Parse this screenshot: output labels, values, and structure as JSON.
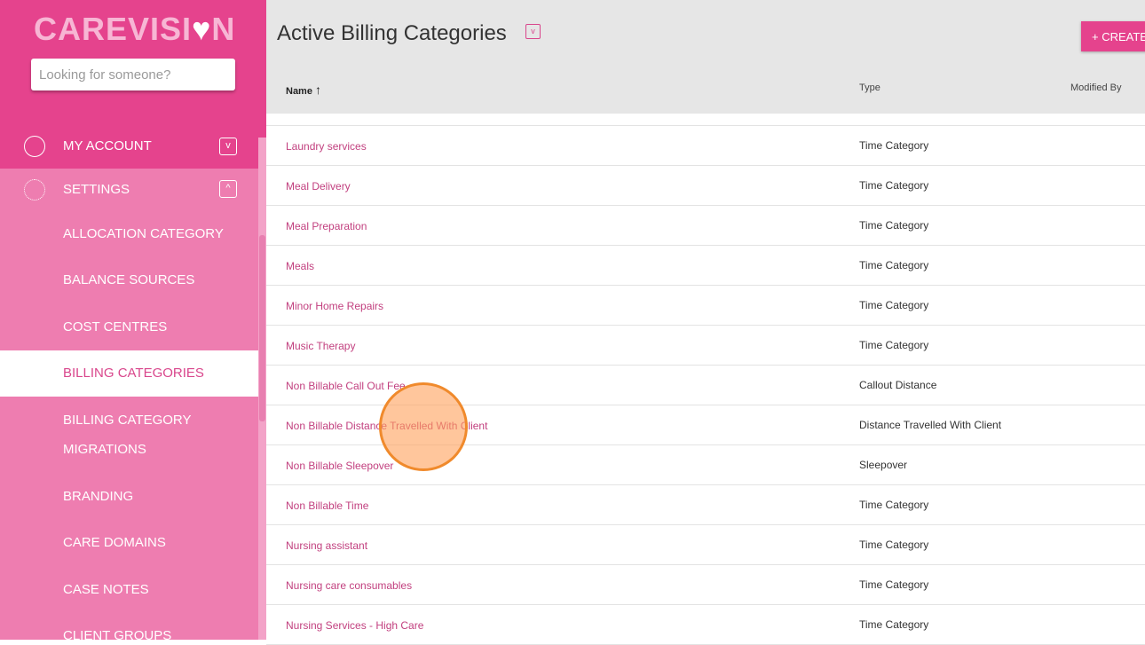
{
  "sidebar": {
    "logo": "CAREVISI",
    "logo_heart": "♥",
    "logo_end": "N",
    "search_placeholder": "Looking for someone?",
    "items": [
      {
        "label": "MY ACCOUNT"
      },
      {
        "label": "SETTINGS"
      },
      {
        "label": "ALLOCATION CATEGORY"
      },
      {
        "label": "BALANCE SOURCES"
      },
      {
        "label": "COST CENTRES"
      },
      {
        "label": "BILLING CATEGORIES"
      },
      {
        "label": "BILLING CATEGORY"
      },
      {
        "label": "MIGRATIONS"
      },
      {
        "label": "BRANDING"
      },
      {
        "label": "CARE DOMAINS"
      },
      {
        "label": "CASE NOTES"
      },
      {
        "label": "CLIENT GROUPS"
      }
    ]
  },
  "header": {
    "title": "Active Billing Categories",
    "create_label": "+ CREATE",
    "columns": [
      "Name",
      "Type",
      "Modified By"
    ],
    "sort_icon": "↑"
  },
  "rows": [
    {
      "name": "Laundry services",
      "type": "Time Category"
    },
    {
      "name": "Meal Delivery",
      "type": "Time Category"
    },
    {
      "name": "Meal Preparation",
      "type": "Time Category"
    },
    {
      "name": "Meals",
      "type": "Time Category"
    },
    {
      "name": "Minor Home Repairs",
      "type": "Time Category"
    },
    {
      "name": "Music Therapy",
      "type": "Time Category"
    },
    {
      "name": "Non Billable Call Out Fee",
      "type": "Callout Distance"
    },
    {
      "name": "Non Billable Distance Travelled With Client",
      "type": "Distance Travelled With Client"
    },
    {
      "name": "Non Billable Sleepover",
      "type": "Sleepover"
    },
    {
      "name": "Non Billable Time",
      "type": "Time Category"
    },
    {
      "name": "Nursing assistant",
      "type": "Time Category"
    },
    {
      "name": "Nursing care consumables",
      "type": "Time Category"
    },
    {
      "name": "Nursing Services - High Care",
      "type": "Time Category"
    }
  ],
  "colors": {
    "brand": "#e5438d",
    "sidebar": "#ee7db0",
    "link": "#c2407f"
  }
}
